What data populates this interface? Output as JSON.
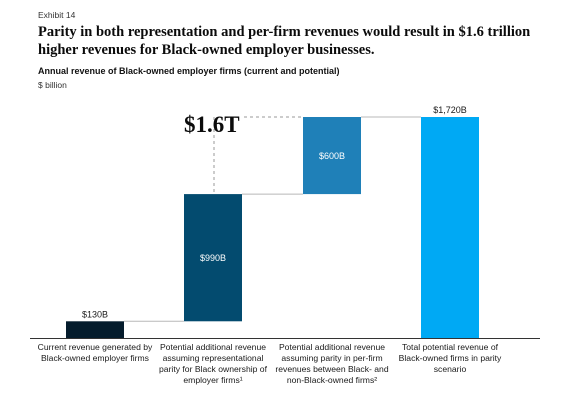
{
  "header": {
    "exhibit": "Exhibit 14",
    "title": "Parity in both representation and per-firm revenues would result in $1.6 trillion higher revenues for Black-owned employer businesses.",
    "subtitle": "Annual revenue of Black-owned employer firms (current and potential)",
    "unit": "$ billion"
  },
  "callout": "$1.6T",
  "chart_data": {
    "type": "bar",
    "subtype": "waterfall",
    "title": "Annual revenue of Black-owned employer firms (current and potential)",
    "ylabel": "$ billion",
    "ylim": [
      0,
      1720
    ],
    "categories": [
      "Current revenue generated by Black-owned employer firms",
      "Potential additional revenue assuming representational parity for Black ownership of employer firms¹",
      "Potential additional revenue assuming parity in per-firm revenues between Black- and non-Black-owned firms²",
      "Total potential revenue of Black-owned firms in parity scenario"
    ],
    "values": [
      130,
      990,
      600,
      1720
    ],
    "bases": [
      0,
      130,
      1120,
      0
    ],
    "data_labels": [
      "$130B",
      "$990B",
      "$600B",
      "$1,720B"
    ],
    "colors": [
      "#051c2c",
      "#034b6f",
      "#1f80b8",
      "#00a9f4"
    ],
    "label_colors": [
      "#1a1a1a",
      "#ffffff",
      "#ffffff",
      "#1a1a1a"
    ],
    "grid": false,
    "legend": "none"
  }
}
